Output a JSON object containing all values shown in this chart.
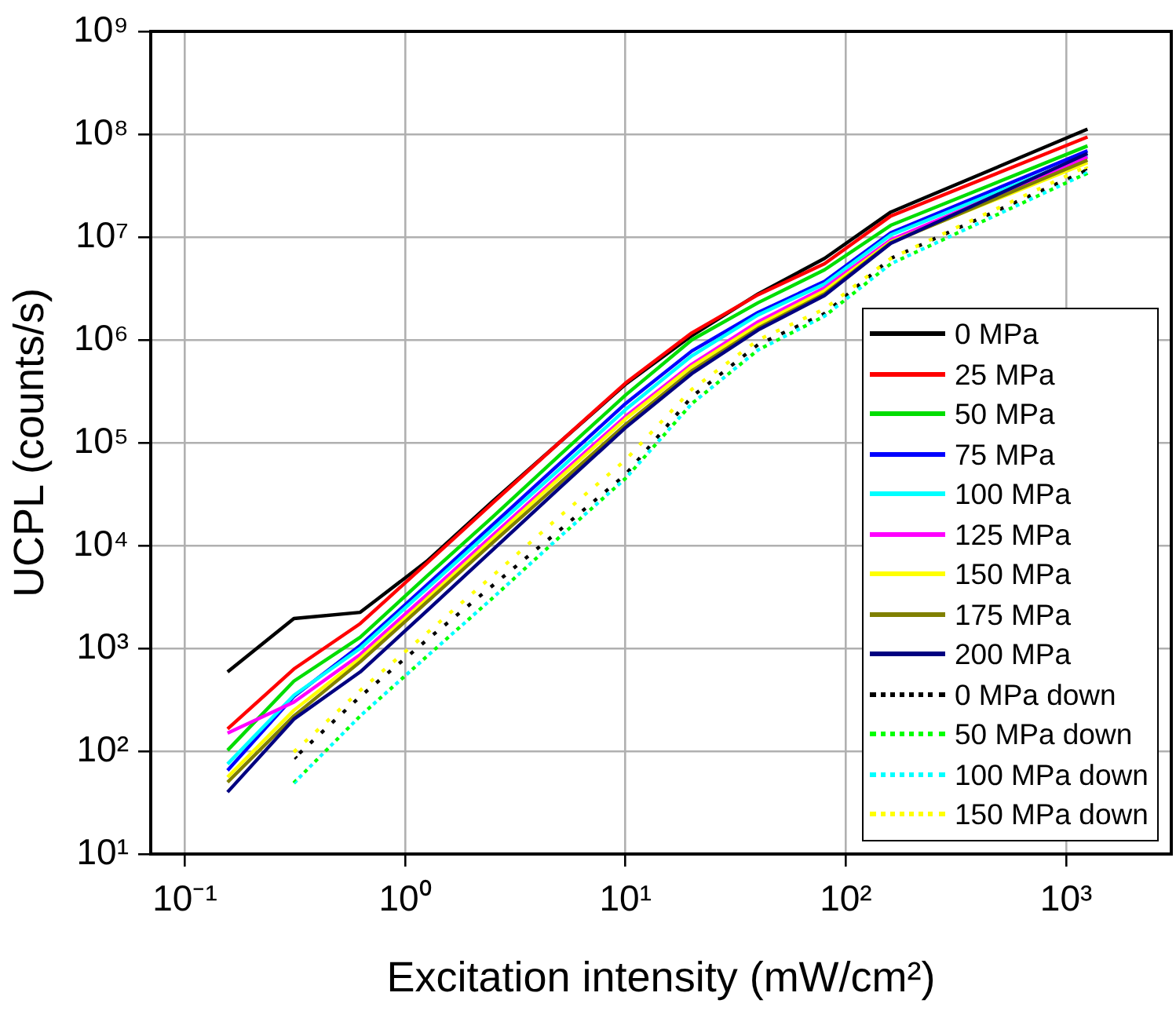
{
  "chart_data": {
    "type": "line",
    "xlabel": "Excitation intensity (mW/cm²)",
    "ylabel": "UCPL (counts/s)",
    "log": "xy",
    "xlim": [
      0.07,
      3000
    ],
    "ylim": [
      10,
      1000000000
    ],
    "xticks": [
      {
        "value": 0.1,
        "label": "10⁻¹"
      },
      {
        "value": 1,
        "label": "10⁰"
      },
      {
        "value": 10,
        "label": "10¹"
      },
      {
        "value": 100,
        "label": "10²"
      },
      {
        "value": 1000,
        "label": "10³"
      }
    ],
    "yticks": [
      {
        "value": 10,
        "label": "10¹"
      },
      {
        "value": 100,
        "label": "10²"
      },
      {
        "value": 1000,
        "label": "10³"
      },
      {
        "value": 10000,
        "label": "10⁴"
      },
      {
        "value": 100000,
        "label": "10⁵"
      },
      {
        "value": 1000000,
        "label": "10⁶"
      },
      {
        "value": 10000000,
        "label": "10⁷"
      },
      {
        "value": 100000000,
        "label": "10⁸"
      },
      {
        "value": 1000000000,
        "label": "10⁹"
      }
    ],
    "grid": true,
    "legend": "bottom right",
    "marker": "none",
    "line_style": "solid",
    "x": [
      0.15625,
      0.3125,
      0.625,
      1.25,
      2.5,
      5,
      10,
      20,
      40,
      80,
      160,
      1250
    ],
    "series": [
      {
        "name": "0 MPa",
        "color": "#000000",
        "values": [
          590,
          1950,
          2240,
          7000,
          27000,
          100000,
          370000,
          1100000,
          2800000,
          6200000,
          17500000,
          112000000
        ]
      },
      {
        "name": "25 MPa",
        "color": "#ff0000",
        "values": [
          165,
          630,
          1740,
          6700,
          26000,
          100000,
          380000,
          1170000,
          2750000,
          5500000,
          16000000,
          94000000
        ]
      },
      {
        "name": "50 MPa",
        "color": "#00dd00",
        "values": [
          102,
          480,
          1280,
          5000,
          19000,
          75000,
          290000,
          1000000,
          2300000,
          4800000,
          13000000,
          77000000
        ]
      },
      {
        "name": "75 MPa",
        "color": "#0000ff",
        "values": [
          65,
          340,
          1070,
          4100,
          16000,
          62000,
          240000,
          780000,
          1850000,
          3700000,
          11000000,
          69000000
        ]
      },
      {
        "name": "100 MPa",
        "color": "#00ffff",
        "values": [
          75,
          350,
          1000,
          3800,
          14500,
          55000,
          210000,
          700000,
          1750000,
          3500000,
          10500000,
          62000000
        ]
      },
      {
        "name": "125 MPa",
        "color": "#ff00ff",
        "values": [
          150,
          300,
          870,
          3300,
          12600,
          48000,
          180000,
          580000,
          1500000,
          3200000,
          9400000,
          60000000
        ]
      },
      {
        "name": "150 MPa",
        "color": "#ffff00",
        "values": [
          56,
          250,
          800,
          3000,
          11700,
          45000,
          170000,
          550000,
          1400000,
          3000000,
          9000000,
          53000000
        ]
      },
      {
        "name": "175 MPa",
        "color": "#808000",
        "values": [
          50,
          220,
          740,
          2800,
          10700,
          40000,
          150000,
          500000,
          1300000,
          2800000,
          8800000,
          56000000
        ]
      },
      {
        "name": "200 MPa",
        "color": "#000080",
        "values": [
          40,
          205,
          590,
          2300,
          9100,
          36000,
          140000,
          470000,
          1250000,
          2700000,
          8700000,
          65000000
        ]
      },
      {
        "name": "0 MPa down",
        "color": "#000000",
        "line_style": "dotted",
        "x": [
          0.3125,
          0.625,
          1.25,
          2.5,
          5,
          10,
          20,
          40,
          80,
          160,
          1250
        ],
        "values": [
          85,
          340,
          1200,
          4100,
          14000,
          49000,
          280000,
          900000,
          1800000,
          6200000,
          45000000
        ]
      },
      {
        "name": "50 MPa down",
        "color": "#00ff00",
        "line_style": "dotted",
        "x": [
          0.3125,
          0.625,
          1.25,
          2.5,
          5,
          10,
          20,
          40,
          80,
          160,
          1250
        ],
        "values": [
          49,
          220,
          830,
          3100,
          12000,
          45000,
          240000,
          800000,
          1700000,
          5500000,
          42000000
        ]
      },
      {
        "name": "100 MPa down",
        "color": "#00ffff",
        "line_style": "dotted",
        "x": [
          0.3125,
          0.625,
          1.25,
          2.5,
          5,
          10,
          20,
          40,
          80,
          160,
          1250
        ],
        "values": [
          49,
          220,
          830,
          3100,
          12000,
          45000,
          240000,
          800000,
          1700000,
          5500000,
          42000000
        ]
      },
      {
        "name": "150 MPa down",
        "color": "#ffff00",
        "line_style": "dotted",
        "x": [
          0.3125,
          0.625,
          1.25,
          2.5,
          5,
          10,
          20,
          40,
          80,
          160,
          1250
        ],
        "values": [
          98,
          390,
          1400,
          5100,
          19000,
          68000,
          330000,
          1000000,
          2000000,
          6200000,
          49000000
        ]
      }
    ]
  }
}
